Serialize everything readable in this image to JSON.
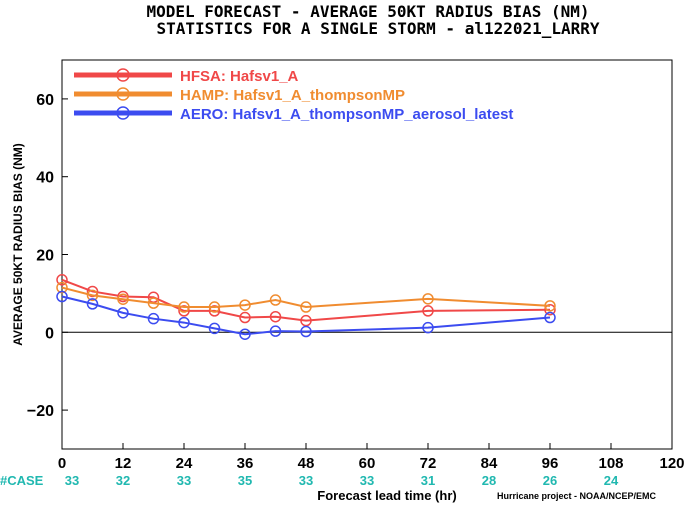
{
  "title": "MODEL FORECAST - AVERAGE 50KT RADIUS BIAS (NM)",
  "subtitle": "STATISTICS FOR A SINGLE STORM - al122021_LARRY",
  "credit": "Hurricane project - NOAA/NCEP/EMC",
  "case_label": "#CASE",
  "chart_data": {
    "type": "line",
    "xlabel": "Forecast lead time (hr)",
    "ylabel": "AVERAGE 50KT RADIUS BIAS (NM)",
    "xlim": [
      0,
      120
    ],
    "ylim": [
      -30,
      70
    ],
    "xticks": [
      0,
      12,
      24,
      36,
      48,
      60,
      72,
      84,
      96,
      108,
      120
    ],
    "yticks": [
      -20,
      0,
      20,
      40,
      60
    ],
    "grid": false,
    "legend_position": "top-left",
    "case_counts": [
      {
        "x": 0,
        "label": "33"
      },
      {
        "x": 12,
        "label": "32"
      },
      {
        "x": 24,
        "label": "33"
      },
      {
        "x": 36,
        "label": "35"
      },
      {
        "x": 48,
        "label": "33"
      },
      {
        "x": 60,
        "label": "33"
      },
      {
        "x": 72,
        "label": "31"
      },
      {
        "x": 84,
        "label": "28"
      },
      {
        "x": 96,
        "label": "26"
      },
      {
        "x": 108,
        "label": "24"
      }
    ],
    "series": [
      {
        "name": "HFSA: Hafsv1_A",
        "color": "#f04848",
        "x": [
          0,
          6,
          12,
          18,
          24,
          30,
          36,
          42,
          48,
          72,
          96
        ],
        "y": [
          13.5,
          10.5,
          9.2,
          9.0,
          5.5,
          5.5,
          3.8,
          4.0,
          3.0,
          5.5,
          5.8
        ]
      },
      {
        "name": "HAMP: Hafsv1_A_thompsonMP",
        "color": "#f08c30",
        "x": [
          0,
          6,
          12,
          18,
          24,
          30,
          36,
          42,
          48,
          72,
          96
        ],
        "y": [
          11.5,
          9.5,
          8.5,
          7.5,
          6.5,
          6.5,
          7.0,
          8.3,
          6.5,
          8.6,
          6.8
        ]
      },
      {
        "name": "AERO: Hafsv1_A_thompsonMP_aerosol_latest",
        "color": "#3c4cf0",
        "x": [
          0,
          6,
          12,
          18,
          24,
          30,
          36,
          42,
          48,
          72,
          96
        ],
        "y": [
          9.2,
          7.3,
          5.0,
          3.5,
          2.5,
          1.0,
          -0.5,
          0.3,
          0.2,
          1.2,
          3.8
        ]
      }
    ]
  }
}
